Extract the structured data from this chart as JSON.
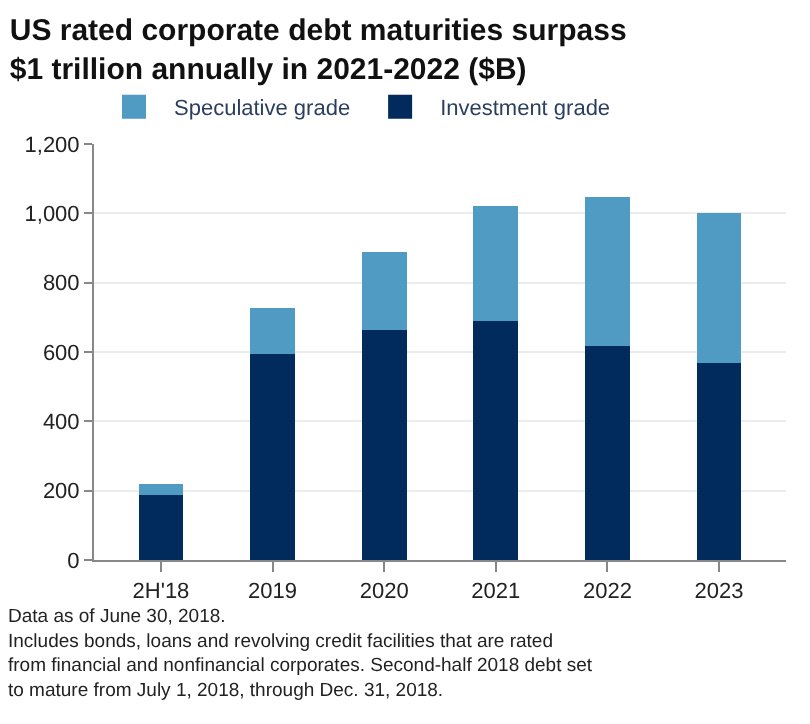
{
  "chart_data": {
    "type": "bar",
    "stacked": true,
    "title": "US rated corporate debt maturities surpass $1 trillion annually in 2021-2022 ($B)",
    "categories": [
      "2H'18",
      "2019",
      "2020",
      "2021",
      "2022",
      "2023"
    ],
    "series": [
      {
        "name": "Investment grade",
        "color": "#002b5c",
        "values": [
          187,
          595,
          663,
          690,
          617,
          568
        ]
      },
      {
        "name": "Speculative grade",
        "color": "#4f9bc3",
        "values": [
          33,
          131,
          225,
          331,
          429,
          434
        ]
      }
    ],
    "ylim": [
      0,
      1200
    ],
    "yticks": [
      0,
      200,
      400,
      600,
      800,
      {
        "value": 1000,
        "label": "1,000"
      },
      {
        "value": 1200,
        "label": "1,200"
      }
    ],
    "grid": "y",
    "legend": "top left",
    "annotations": [
      "Data as of June 30, 2018.",
      "Includes bonds, loans and revolving credit facilities that are rated from financial and nonfinancial corporates. Second-half 2018 debt set to mature from July 1, 2018, through Dec. 31, 2018."
    ]
  }
}
